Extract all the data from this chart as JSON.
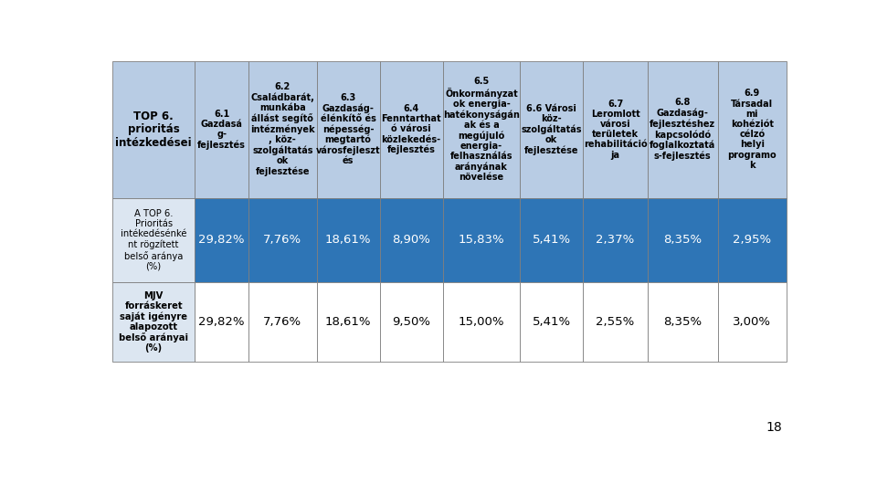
{
  "col_headers": [
    "TOP 6.\nprioritás\nintézkedései",
    "6.1\nGazdasá\ng-\nfejlesztés",
    "6.2\nCsaládbarát,\nmunkába\nállást segítő\nintézmények\n, köz-\nszolgáltatás\nok\nfejlesztése",
    "6.3\nGazdaság-\nélénkítő és\nnépesség-\nmegtartó\nvárosfejleszt\nés",
    "6.4\nFenntarthat\nó városi\nközlekedés-\nfejlesztés",
    "6.5\nÖnkormányzat\nok energia-\nhatékonyságán\nak és a\nmegújuló\nenergia-\nfelhasználás\narányának\nnövelése",
    "6.6 Városi\nköz-\nszolgáltatás\nok\nfejlesztése",
    "6.7\nLeromlott\nvárosi\nterületek\nrehabilitáció\nja",
    "6.8\nGazdaság-\nfejlesztéshez\nkapcsolódó\nfoglalkoztatá\ns-fejlesztés",
    "6.9\nTársadal\nmi\nkohéziót\ncélzó\nhelyi\nprogramo\nk"
  ],
  "row_labels": [
    "A TOP 6.\nPrioritás\nintékedésénké\nnt rögzített\nbelső aránya\n(%)",
    "MJV\nforráskeret\nsaját igényre\nalapozott\nbelső arányai\n(%)"
  ],
  "row1_values": [
    "29,82%",
    "7,76%",
    "18,61%",
    "8,90%",
    "15,83%",
    "5,41%",
    "2,37%",
    "8,35%",
    "2,95%"
  ],
  "row2_values": [
    "29,82%",
    "7,76%",
    "18,61%",
    "9,50%",
    "15,00%",
    "5,41%",
    "2,55%",
    "8,35%",
    "3,00%"
  ],
  "header_bg": "#b8cce4",
  "row1_bg": "#2e75b6",
  "row1_label_bg": "#dce6f1",
  "row2_bg": "#ffffff",
  "row2_label_bg": "#dce6f1",
  "header_text_color": "#000000",
  "row1_text_color": "#ffffff",
  "row2_text_color": "#000000",
  "border_color": "#7f7f7f",
  "page_number": "18",
  "background_color": "#ffffff"
}
